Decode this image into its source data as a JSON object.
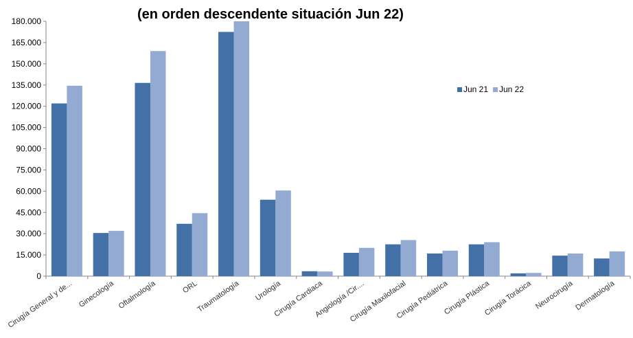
{
  "chart_data": {
    "type": "bar",
    "title": "(en orden descendente  situación  Jun 22)",
    "categories": [
      "Cirugía General y de...",
      "Ginecología",
      "Oftalmología",
      "ORL",
      "Traumatología",
      "Urología",
      "Cirugía Cardiaca",
      "Angiología /Cir....",
      "Cirugía Maxilofacial",
      "Cirugía Pediátrica",
      "Cirugía Plástica",
      "Cirugía Torácica",
      "Neurocirugía",
      "Dermatología"
    ],
    "series": [
      {
        "name": "Jun 21",
        "color": "#4470A8",
        "values": [
          122000,
          30500,
          136500,
          37000,
          172500,
          54000,
          3500,
          16500,
          22500,
          16000,
          22500,
          2000,
          14500,
          12500
        ]
      },
      {
        "name": "Jun 22",
        "color": "#93AAD3",
        "values": [
          134500,
          32000,
          159000,
          44500,
          180000,
          60500,
          3300,
          20000,
          25500,
          18000,
          24000,
          2300,
          16000,
          17500
        ]
      }
    ],
    "ylim": [
      0,
      180000
    ],
    "yticks": [
      "0",
      "15.000",
      "30.000",
      "45.000",
      "60.000",
      "75.000",
      "90.000",
      "105.000",
      "120.000",
      "135.000",
      "150.000",
      "165.000",
      "180.000"
    ],
    "ytick_values": [
      0,
      15000,
      30000,
      45000,
      60000,
      75000,
      90000,
      105000,
      120000,
      135000,
      150000,
      165000,
      180000
    ],
    "legend_position": "top-right",
    "grid": false
  }
}
